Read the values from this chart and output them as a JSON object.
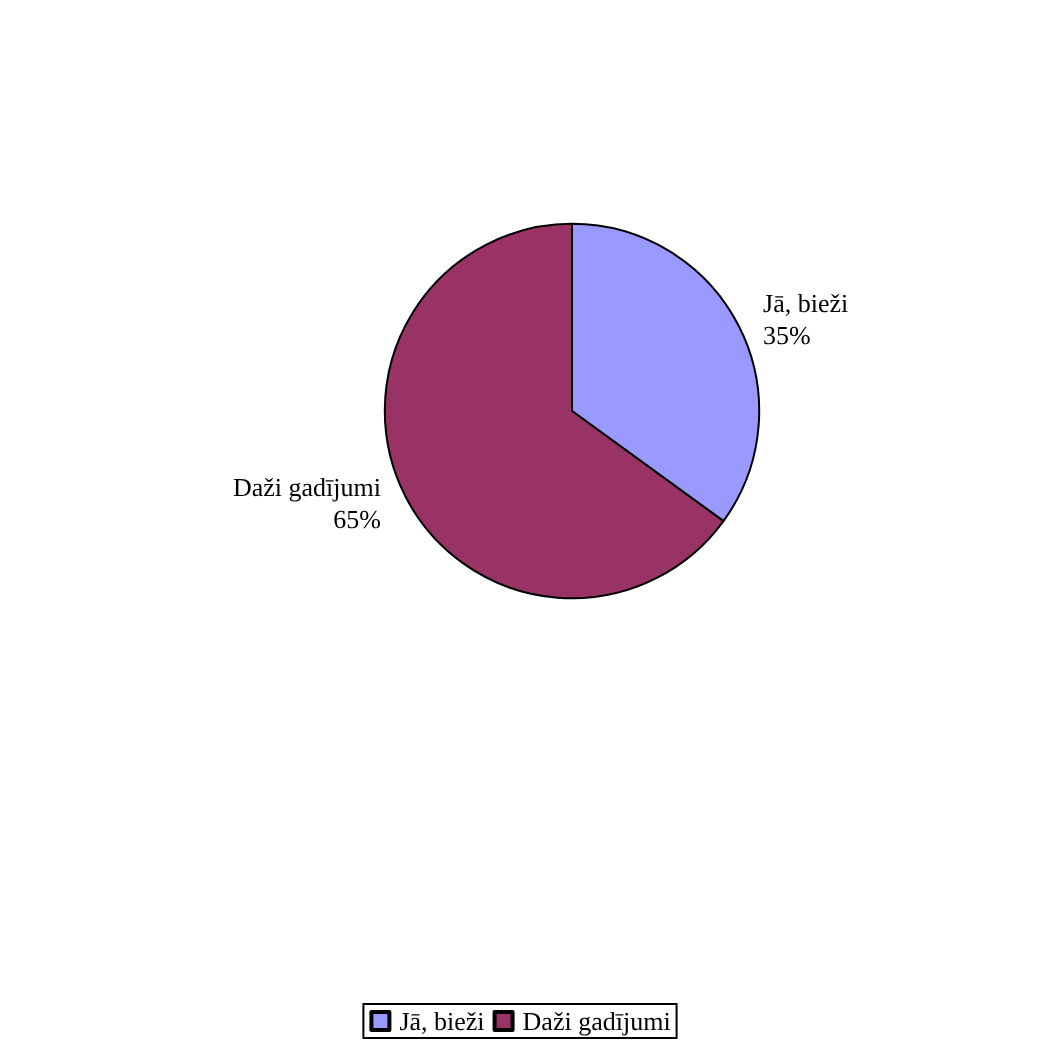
{
  "chart_data": {
    "type": "pie",
    "categories": [
      "Jā, bieži",
      "Daži gadījumi"
    ],
    "values": [
      35,
      65
    ],
    "colors": [
      "#9999ff",
      "#993366"
    ],
    "value_labels": [
      "35%",
      "65%"
    ],
    "legend": "bottom"
  }
}
